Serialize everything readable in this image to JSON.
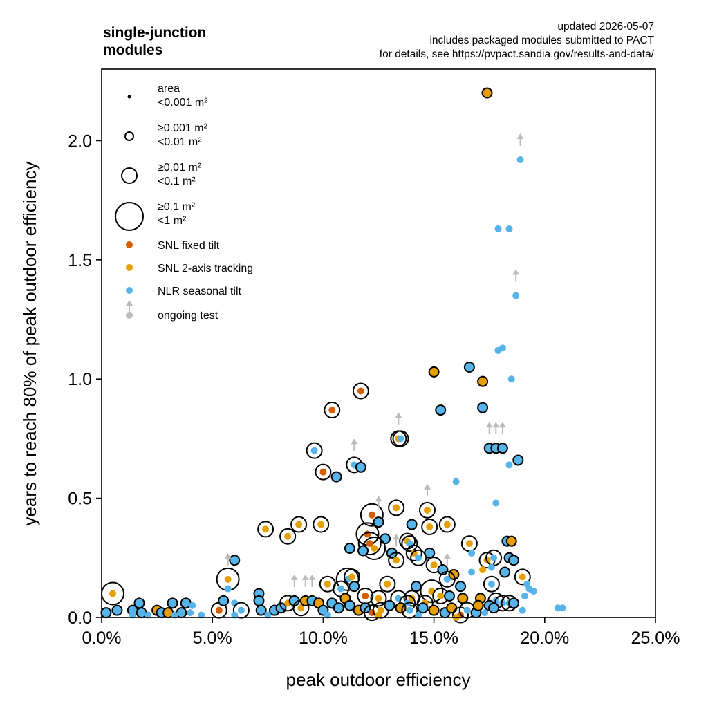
{
  "chart_data": {
    "type": "scatter",
    "title": "single-junction\nmodules",
    "notes": [
      "updated 2026-05-07",
      "includes packaged modules submitted to PACT",
      "for details, see https://pvpact.sandia.gov/results-and-data/"
    ],
    "xlabel": "peak outdoor efficiency",
    "ylabel": "years to reach 80% of peak outdoor efficiency",
    "xlim": [
      0,
      0.25
    ],
    "ylim": [
      0,
      2.3
    ],
    "xticks": [
      0,
      0.05,
      0.1,
      0.15,
      0.2,
      0.25
    ],
    "xtick_labels": [
      "0.0%",
      "5.0%",
      "10.0%",
      "15.0%",
      "20.0%",
      "25.0%"
    ],
    "yticks": [
      0,
      0.5,
      1.0,
      1.5,
      2.0
    ],
    "ytick_labels": [
      "0.0",
      "0.5",
      "1.0",
      "1.5",
      "2.0"
    ],
    "grid": false,
    "legend_position": "top-left",
    "colors": {
      "SNL fixed tilt": "#d55e00",
      "SNL 2-axis tracking": "#e69f00",
      "NLR seasonal tilt": "#56b4e9",
      "ongoing test": "#bbbbbb"
    },
    "size_legend": [
      {
        "label": "area\n<0.001 m²",
        "size": 0
      },
      {
        "label": "≥0.001 m²\n<0.01 m²",
        "size": 1
      },
      {
        "label": "≥0.01 m²\n<0.1 m²",
        "size": 2
      },
      {
        "label": "≥0.1 m²\n<1 m²",
        "size": 3
      }
    ],
    "color_legend": [
      {
        "label": "SNL fixed tilt",
        "key": "SNL fixed tilt"
      },
      {
        "label": "SNL 2-axis tracking",
        "key": "SNL 2-axis tracking"
      },
      {
        "label": "NLR seasonal tilt",
        "key": "NLR seasonal tilt"
      },
      {
        "label": "ongoing test",
        "key": "ongoing test",
        "arrow": true
      }
    ],
    "points": [
      [
        0.174,
        2.2,
        "t",
        1,
        0
      ],
      [
        0.189,
        1.92,
        "n",
        0,
        1
      ],
      [
        0.179,
        1.63,
        "n",
        0,
        0
      ],
      [
        0.184,
        1.63,
        "n",
        0,
        0
      ],
      [
        0.187,
        1.35,
        "n",
        0,
        1
      ],
      [
        0.181,
        1.13,
        "n",
        0,
        0
      ],
      [
        0.179,
        1.12,
        "n",
        0,
        0
      ],
      [
        0.166,
        1.05,
        "n",
        1,
        0
      ],
      [
        0.15,
        1.03,
        "t",
        1,
        0
      ],
      [
        0.185,
        1.0,
        "n",
        0,
        0
      ],
      [
        0.172,
        0.99,
        "t",
        1,
        0
      ],
      [
        0.117,
        0.95,
        "f",
        2,
        0
      ],
      [
        0.172,
        0.88,
        "n",
        1,
        0
      ],
      [
        0.153,
        0.87,
        "n",
        1,
        0
      ],
      [
        0.104,
        0.87,
        "f",
        2,
        0
      ],
      [
        0.134,
        0.75,
        "t",
        2,
        1
      ],
      [
        0.135,
        0.75,
        "n",
        2,
        0
      ],
      [
        0.175,
        0.71,
        "n",
        1,
        1
      ],
      [
        0.178,
        0.71,
        "n",
        1,
        1
      ],
      [
        0.181,
        0.71,
        "n",
        1,
        1
      ],
      [
        0.096,
        0.7,
        "n",
        2,
        0
      ],
      [
        0.188,
        0.66,
        "n",
        1,
        0
      ],
      [
        0.184,
        0.64,
        "n",
        0,
        0
      ],
      [
        0.114,
        0.64,
        "n",
        2,
        1
      ],
      [
        0.117,
        0.63,
        "n",
        1,
        0
      ],
      [
        0.1,
        0.61,
        "f",
        2,
        0
      ],
      [
        0.106,
        0.59,
        "n",
        1,
        0
      ],
      [
        0.16,
        0.57,
        "n",
        0,
        0
      ],
      [
        0.178,
        0.48,
        "n",
        0,
        0
      ],
      [
        0.133,
        0.46,
        "t",
        2,
        0
      ],
      [
        0.122,
        0.43,
        "f",
        3,
        0
      ],
      [
        0.147,
        0.45,
        "t",
        2,
        1
      ],
      [
        0.125,
        0.4,
        "n",
        1,
        1
      ],
      [
        0.14,
        0.39,
        "n",
        1,
        0
      ],
      [
        0.156,
        0.39,
        "t",
        2,
        0
      ],
      [
        0.148,
        0.38,
        "t",
        2,
        0
      ],
      [
        0.089,
        0.39,
        "t",
        2,
        0
      ],
      [
        0.099,
        0.39,
        "t",
        2,
        0
      ],
      [
        0.074,
        0.37,
        "t",
        2,
        0
      ],
      [
        0.084,
        0.34,
        "t",
        2,
        0
      ],
      [
        0.12,
        0.35,
        "f",
        3,
        0
      ],
      [
        0.121,
        0.31,
        "f",
        3,
        0
      ],
      [
        0.128,
        0.33,
        "n",
        1,
        0
      ],
      [
        0.138,
        0.32,
        "t",
        2,
        0
      ],
      [
        0.139,
        0.31,
        "n",
        2,
        0
      ],
      [
        0.166,
        0.31,
        "t",
        2,
        0
      ],
      [
        0.183,
        0.32,
        "n",
        1,
        0
      ],
      [
        0.185,
        0.32,
        "t",
        1,
        0
      ],
      [
        0.123,
        0.29,
        "t",
        3,
        0
      ],
      [
        0.112,
        0.29,
        "n",
        1,
        0
      ],
      [
        0.118,
        0.28,
        "n",
        1,
        0
      ],
      [
        0.131,
        0.27,
        "n",
        1,
        0
      ],
      [
        0.141,
        0.27,
        "t",
        2,
        0
      ],
      [
        0.148,
        0.27,
        "n",
        1,
        0
      ],
      [
        0.143,
        0.25,
        "n",
        2,
        0
      ],
      [
        0.133,
        0.24,
        "t",
        2,
        1
      ],
      [
        0.174,
        0.24,
        "t",
        2,
        0
      ],
      [
        0.177,
        0.25,
        "n",
        2,
        0
      ],
      [
        0.184,
        0.25,
        "n",
        1,
        0
      ],
      [
        0.186,
        0.24,
        "n",
        1,
        0
      ],
      [
        0.167,
        0.27,
        "n",
        0,
        0
      ],
      [
        0.06,
        0.24,
        "n",
        1,
        0
      ],
      [
        0.057,
        0.16,
        "t",
        3,
        1
      ],
      [
        0.057,
        0.12,
        "n",
        0,
        0
      ],
      [
        0.111,
        0.16,
        "n",
        3,
        0
      ],
      [
        0.113,
        0.17,
        "t",
        2,
        0
      ],
      [
        0.15,
        0.22,
        "t",
        2,
        0
      ],
      [
        0.154,
        0.2,
        "n",
        1,
        0
      ],
      [
        0.159,
        0.18,
        "t",
        1,
        0
      ],
      [
        0.167,
        0.19,
        "n",
        0,
        0
      ],
      [
        0.176,
        0.21,
        "n",
        0,
        0
      ],
      [
        0.172,
        0.2,
        "t",
        0,
        0
      ],
      [
        0.19,
        0.17,
        "t",
        2,
        0
      ],
      [
        0.182,
        0.19,
        "n",
        1,
        0
      ],
      [
        0.156,
        0.16,
        "n",
        2,
        1
      ],
      [
        0.102,
        0.14,
        "t",
        2,
        0
      ],
      [
        0.108,
        0.12,
        "n",
        2,
        0
      ],
      [
        0.114,
        0.13,
        "n",
        1,
        0
      ],
      [
        0.129,
        0.14,
        "t",
        2,
        0
      ],
      [
        0.142,
        0.13,
        "n",
        1,
        0
      ],
      [
        0.162,
        0.13,
        "n",
        1,
        0
      ],
      [
        0.176,
        0.14,
        "n",
        2,
        0
      ],
      [
        0.149,
        0.11,
        "t",
        3,
        0
      ],
      [
        0.153,
        0.09,
        "t",
        2,
        0
      ],
      [
        0.157,
        0.09,
        "n",
        1,
        0
      ],
      [
        0.163,
        0.08,
        "t",
        1,
        0
      ],
      [
        0.171,
        0.08,
        "t",
        1,
        0
      ],
      [
        0.119,
        0.09,
        "f",
        2,
        0
      ],
      [
        0.125,
        0.08,
        "t",
        2,
        0
      ],
      [
        0.134,
        0.08,
        "n",
        2,
        0
      ],
      [
        0.14,
        0.08,
        "t",
        2,
        0
      ],
      [
        0.138,
        0.06,
        "n",
        2,
        0
      ],
      [
        0.146,
        0.06,
        "t",
        2,
        0
      ],
      [
        0.178,
        0.07,
        "n",
        2,
        0
      ],
      [
        0.181,
        0.06,
        "n",
        2,
        0
      ],
      [
        0.184,
        0.06,
        "n",
        2,
        0
      ],
      [
        0.186,
        0.06,
        "n",
        1,
        0
      ],
      [
        0.175,
        0.05,
        "n",
        1,
        0
      ],
      [
        0.177,
        0.04,
        "n",
        1,
        0
      ],
      [
        0.192,
        0.14,
        "n",
        0,
        0
      ],
      [
        0.193,
        0.12,
        "n",
        0,
        0
      ],
      [
        0.195,
        0.11,
        "n",
        0,
        0
      ],
      [
        0.191,
        0.09,
        "n",
        0,
        0
      ],
      [
        0.206,
        0.04,
        "n",
        0,
        0
      ],
      [
        0.208,
        0.04,
        "n",
        0,
        0
      ],
      [
        0.19,
        0.03,
        "n",
        0,
        0
      ],
      [
        0.005,
        0.1,
        "t",
        3,
        0
      ],
      [
        0.017,
        0.06,
        "n",
        1,
        0
      ],
      [
        0.002,
        0.02,
        "n",
        1,
        0
      ],
      [
        0.007,
        0.03,
        "n",
        1,
        0
      ],
      [
        0.014,
        0.03,
        "n",
        1,
        0
      ],
      [
        0.018,
        0.02,
        "n",
        1,
        0
      ],
      [
        0.025,
        0.03,
        "t",
        1,
        0
      ],
      [
        0.027,
        0.02,
        "n",
        1,
        0
      ],
      [
        0.03,
        0.02,
        "t",
        1,
        0
      ],
      [
        0.032,
        0.06,
        "n",
        1,
        0
      ],
      [
        0.036,
        0.02,
        "n",
        1,
        0
      ],
      [
        0.038,
        0.06,
        "n",
        1,
        0
      ],
      [
        0.04,
        0.02,
        "n",
        0,
        0
      ],
      [
        0.041,
        0.05,
        "n",
        0,
        0
      ],
      [
        0.053,
        0.03,
        "f",
        2,
        0
      ],
      [
        0.055,
        0.07,
        "n",
        1,
        0
      ],
      [
        0.06,
        0.06,
        "n",
        0,
        0
      ],
      [
        0.063,
        0.03,
        "n",
        2,
        0
      ],
      [
        0.071,
        0.1,
        "n",
        1,
        0
      ],
      [
        0.071,
        0.07,
        "n",
        1,
        0
      ],
      [
        0.072,
        0.03,
        "n",
        1,
        0
      ],
      [
        0.078,
        0.03,
        "n",
        1,
        0
      ],
      [
        0.081,
        0.04,
        "n",
        1,
        0
      ],
      [
        0.084,
        0.06,
        "t",
        2,
        0
      ],
      [
        0.087,
        0.07,
        "n",
        1,
        1
      ],
      [
        0.09,
        0.04,
        "t",
        2,
        0
      ],
      [
        0.092,
        0.07,
        "t",
        1,
        1
      ],
      [
        0.095,
        0.07,
        "n",
        1,
        1
      ],
      [
        0.098,
        0.06,
        "t",
        1,
        0
      ],
      [
        0.1,
        0.03,
        "n",
        1,
        0
      ],
      [
        0.104,
        0.06,
        "n",
        1,
        0
      ],
      [
        0.107,
        0.04,
        "n",
        1,
        0
      ],
      [
        0.11,
        0.08,
        "t",
        1,
        0
      ],
      [
        0.112,
        0.05,
        "n",
        1,
        0
      ],
      [
        0.116,
        0.03,
        "t",
        1,
        0
      ],
      [
        0.119,
        0.04,
        "n",
        1,
        0
      ],
      [
        0.122,
        0.02,
        "f",
        2,
        0
      ],
      [
        0.126,
        0.03,
        "t",
        2,
        0
      ],
      [
        0.13,
        0.05,
        "n",
        1,
        0
      ],
      [
        0.135,
        0.04,
        "t",
        1,
        0
      ],
      [
        0.139,
        0.03,
        "n",
        2,
        0
      ],
      [
        0.145,
        0.04,
        "n",
        1,
        0
      ],
      [
        0.15,
        0.03,
        "t",
        1,
        0
      ],
      [
        0.155,
        0.02,
        "n",
        1,
        0
      ],
      [
        0.158,
        0.04,
        "t",
        1,
        0
      ],
      [
        0.162,
        0.01,
        "f",
        2,
        0
      ],
      [
        0.165,
        0.03,
        "n",
        2,
        0
      ],
      [
        0.169,
        0.02,
        "n",
        1,
        0
      ],
      [
        0.17,
        0.05,
        "t",
        1,
        0
      ],
      [
        0.014,
        0.01,
        "n",
        0,
        0
      ],
      [
        0.021,
        0.01,
        "n",
        0,
        0
      ],
      [
        0.033,
        0.01,
        "n",
        0,
        0
      ],
      [
        0.045,
        0.01,
        "n",
        0,
        0
      ],
      [
        0.06,
        0.01,
        "n",
        0,
        0
      ],
      [
        0.075,
        0.01,
        "n",
        0,
        0
      ],
      [
        0.102,
        0.01,
        "n",
        0,
        0
      ],
      [
        0.125,
        0.01,
        "t",
        0,
        0
      ],
      [
        0.143,
        0.01,
        "n",
        0,
        0
      ],
      [
        0.16,
        0.0,
        "t",
        0,
        0
      ],
      [
        0.173,
        0.02,
        "n",
        0,
        0
      ]
    ]
  }
}
